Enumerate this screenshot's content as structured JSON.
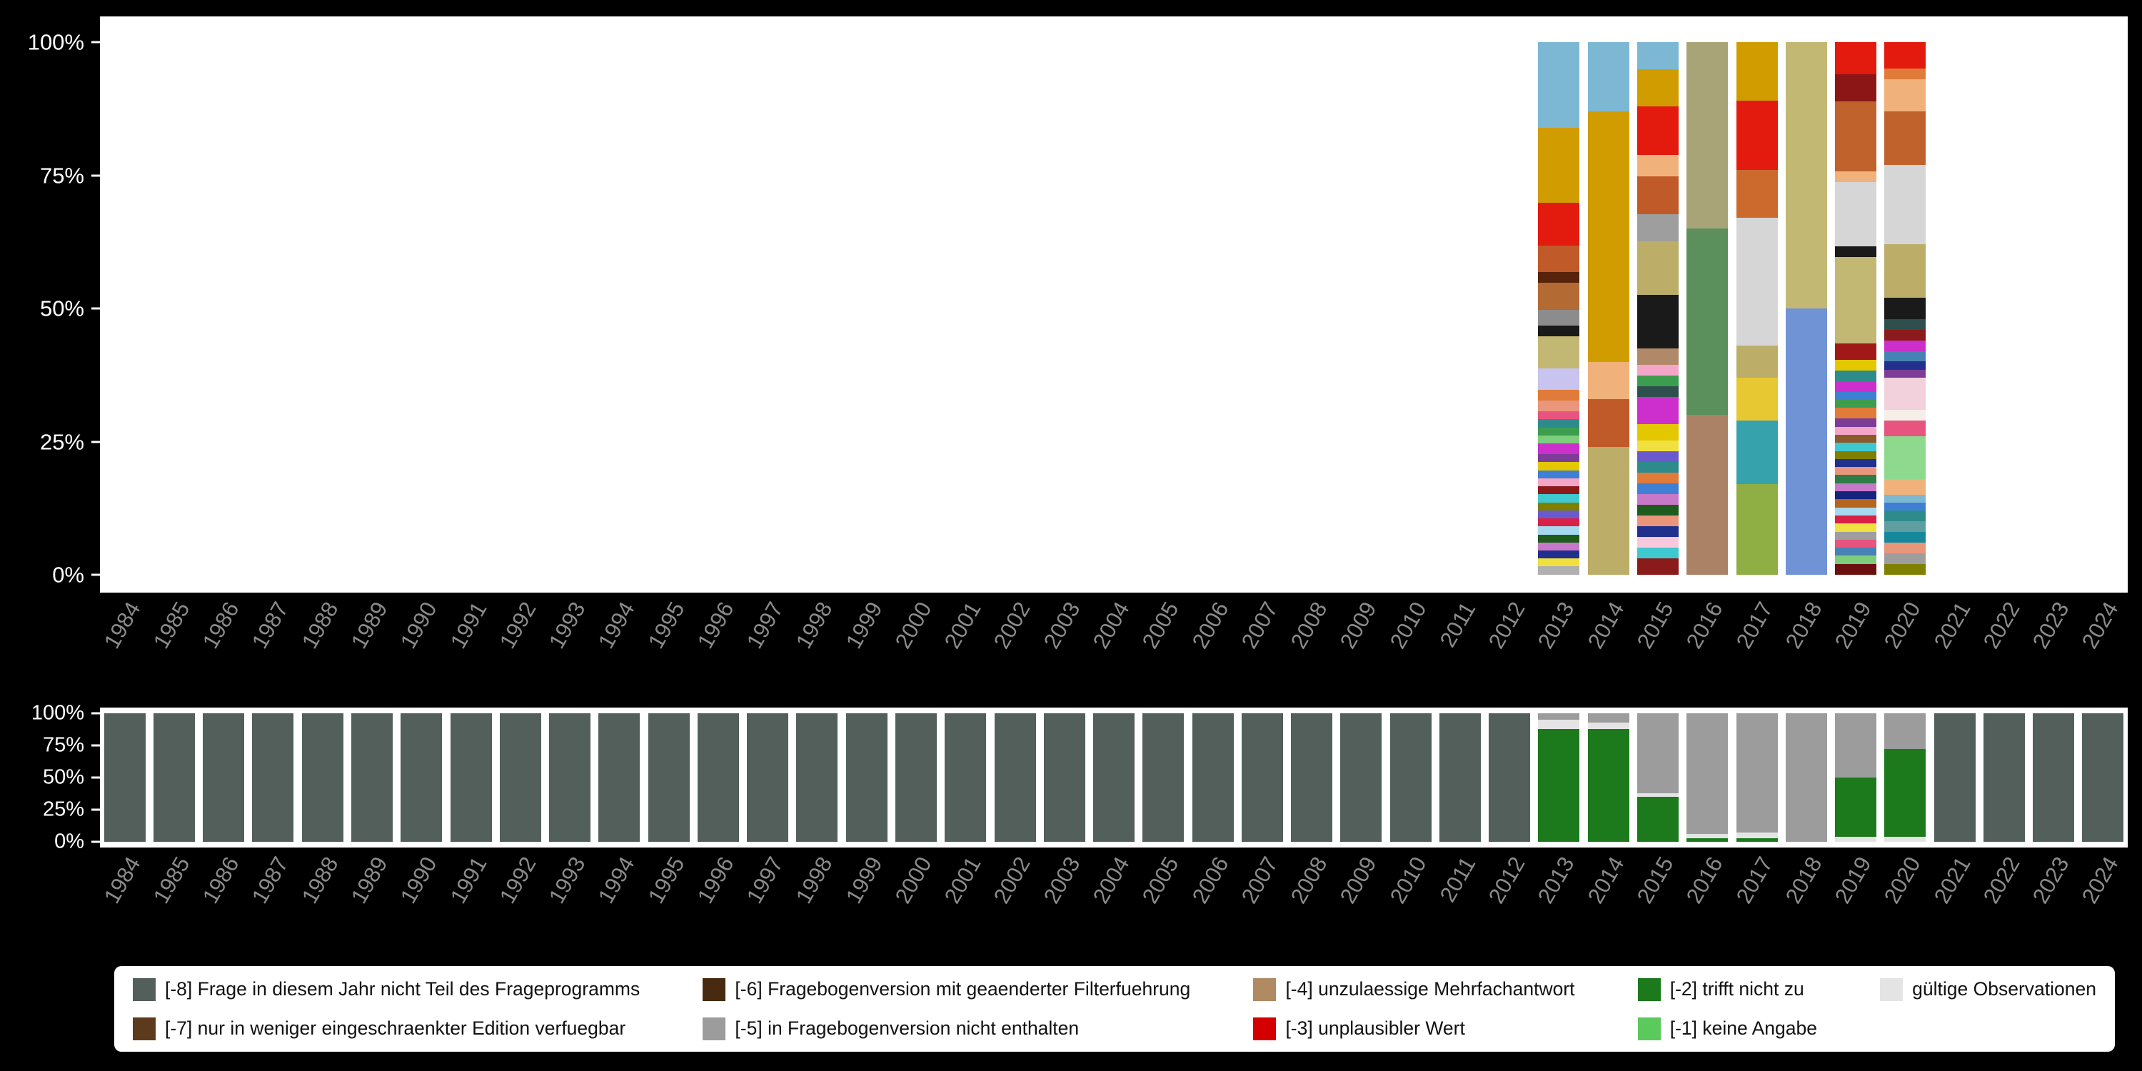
{
  "palette": {
    "page_background": "#000000",
    "plot_background": "#ffffff",
    "y_axis_label_color": "#ffffff",
    "x_axis_label_color": "#8b8b8b",
    "legend_background": "#ffffff",
    "legend_text_color": "#111111"
  },
  "axes": {
    "y_tick_labels": [
      "100%",
      "75%",
      "50%",
      "25%",
      "0%"
    ],
    "years": [
      "1984",
      "1985",
      "1986",
      "1987",
      "1988",
      "1989",
      "1990",
      "1991",
      "1992",
      "1993",
      "1994",
      "1995",
      "1996",
      "1997",
      "1998",
      "1999",
      "2000",
      "2001",
      "2002",
      "2003",
      "2004",
      "2005",
      "2006",
      "2007",
      "2008",
      "2009",
      "2010",
      "2011",
      "2012",
      "2013",
      "2014",
      "2015",
      "2016",
      "2017",
      "2018",
      "2019",
      "2020",
      "2021",
      "2022",
      "2023",
      "2024"
    ]
  },
  "legend": {
    "items": [
      {
        "code": "-8",
        "label": "[-8] Frage in diesem Jahr nicht Teil des Frageprogramms",
        "color": "#535f5a"
      },
      {
        "code": "-7",
        "label": "[-7] nur in weniger eingeschraenkter Edition verfuegbar",
        "color": "#5e3a1d"
      },
      {
        "code": "-6",
        "label": "[-6] Fragebogenversion mit geaenderter Filterfuehrung",
        "color": "#472a10"
      },
      {
        "code": "-5",
        "label": "[-5] in Fragebogenversion nicht enthalten",
        "color": "#9c9c9c"
      },
      {
        "code": "-4",
        "label": "[-4] unzulaessige Mehrfachantwort",
        "color": "#b08a63"
      },
      {
        "code": "-3",
        "label": "[-3] unplausibler Wert",
        "color": "#d40000"
      },
      {
        "code": "-2",
        "label": "[-2] trifft nicht zu",
        "color": "#1c7a1c"
      },
      {
        "code": "-1",
        "label": "[-1] keine Angabe",
        "color": "#5cc95c"
      },
      {
        "code": "valid",
        "label": "gültige Observationen",
        "color": "#e4e4e4"
      }
    ]
  },
  "chart_data": [
    {
      "id": "answer-category-distribution",
      "type": "bar",
      "stacked": true,
      "title": "",
      "xlabel": "",
      "ylabel": "",
      "ylim": [
        0,
        100
      ],
      "y_ticks_percent": [
        100,
        75,
        50,
        25,
        0
      ],
      "categories": [
        "1984",
        "1985",
        "1986",
        "1987",
        "1988",
        "1989",
        "1990",
        "1991",
        "1992",
        "1993",
        "1994",
        "1995",
        "1996",
        "1997",
        "1998",
        "1999",
        "2000",
        "2001",
        "2002",
        "2003",
        "2004",
        "2005",
        "2006",
        "2007",
        "2008",
        "2009",
        "2010",
        "2011",
        "2012",
        "2013",
        "2014",
        "2015",
        "2016",
        "2017",
        "2018",
        "2019",
        "2020",
        "2021",
        "2022",
        "2023",
        "2024"
      ],
      "segment_order": "top-to-bottom",
      "bars": {
        "2013": [
          [
            "#7cb8d4",
            16
          ],
          [
            "#d19c00",
            14
          ],
          [
            "#e31a0e",
            8
          ],
          [
            "#c05a28",
            5
          ],
          [
            "#57230b",
            2
          ],
          [
            "#b36a33",
            5
          ],
          [
            "#8c8c8c",
            3
          ],
          [
            "#1a1a1a",
            2
          ],
          [
            "#c3b873",
            6
          ],
          [
            "#c9c3ef",
            4
          ],
          [
            "#e07b39",
            2
          ],
          [
            "#e9967a",
            2
          ],
          [
            "#e75480",
            1.5
          ],
          [
            "#2e8b8b",
            1.5
          ],
          [
            "#3c9d4e",
            1.5
          ],
          [
            "#7ccd7c",
            1.5
          ],
          [
            "#cc2fcb",
            2
          ],
          [
            "#7d3c98",
            1.5
          ],
          [
            "#e3c800",
            1.5
          ],
          [
            "#3f7fd4",
            1.5
          ],
          [
            "#f4a6c9",
            1.5
          ],
          [
            "#8b1a1a",
            1.5
          ],
          [
            "#40c8d0",
            1.5
          ],
          [
            "#808000",
            1.5
          ],
          [
            "#6a5acd",
            1.5
          ],
          [
            "#d92045",
            1.5
          ],
          [
            "#a6d8ef",
            1.5
          ],
          [
            "#1e5c1e",
            1.5
          ],
          [
            "#c878c8",
            1.5
          ],
          [
            "#20308c",
            1.5
          ],
          [
            "#f0e040",
            1.5
          ],
          [
            "#b0b0b0",
            1.5
          ]
        ],
        "2014": [
          [
            "#7cb8d4",
            13
          ],
          [
            "#d19c00",
            47
          ],
          [
            "#f0b27a",
            7
          ],
          [
            "#c05a28",
            9
          ],
          [
            "#bcae69",
            24
          ]
        ],
        "2015": [
          [
            "#7cb8d4",
            5
          ],
          [
            "#d19c00",
            7
          ],
          [
            "#e31a0e",
            9
          ],
          [
            "#f0b27a",
            4
          ],
          [
            "#c05a28",
            7
          ],
          [
            "#9e9e9e",
            5
          ],
          [
            "#bcae69",
            10
          ],
          [
            "#1a1a1a",
            10
          ],
          [
            "#b08968",
            3
          ],
          [
            "#f4a6c9",
            2
          ],
          [
            "#3c9d4e",
            2
          ],
          [
            "#2f4f4f",
            2
          ],
          [
            "#cc2fcb",
            5
          ],
          [
            "#e3c800",
            3
          ],
          [
            "#f0e040",
            2
          ],
          [
            "#6a5acd",
            2
          ],
          [
            "#2e8b8b",
            2
          ],
          [
            "#e07b39",
            2
          ],
          [
            "#3f7fd4",
            2
          ],
          [
            "#c878c8",
            2
          ],
          [
            "#1e5c1e",
            2
          ],
          [
            "#e9967a",
            2
          ],
          [
            "#20308c",
            2
          ],
          [
            "#f8c8dc",
            2
          ],
          [
            "#40c8d0",
            2
          ],
          [
            "#8b1a1a",
            3
          ]
        ],
        "2016": [
          [
            "#a9a478",
            35
          ],
          [
            "#5b8f5b",
            35
          ],
          [
            "#ab8265",
            30
          ]
        ],
        "2017": [
          [
            "#d19c00",
            11
          ],
          [
            "#e31a0e",
            13
          ],
          [
            "#cc6a2e",
            9
          ],
          [
            "#d6d6d6",
            24
          ],
          [
            "#bcae69",
            6
          ],
          [
            "#e8c832",
            8
          ],
          [
            "#35a2ac",
            12
          ],
          [
            "#8fae44",
            17
          ]
        ],
        "2018": [
          [
            "#c3b873",
            50
          ],
          [
            "#7093d5",
            50
          ]
        ],
        "2019": [
          [
            "#e31a0e",
            6
          ],
          [
            "#8c1616",
            5
          ],
          [
            "#c0622b",
            13
          ],
          [
            "#f0b27a",
            2
          ],
          [
            "#d6d6d6",
            12
          ],
          [
            "#1a1a1a",
            2
          ],
          [
            "#c3b873",
            16
          ],
          [
            "#a01818",
            3
          ],
          [
            "#e3c800",
            2
          ],
          [
            "#2e8b8b",
            2
          ],
          [
            "#cc2fcb",
            2
          ],
          [
            "#3f7fd4",
            1.5
          ],
          [
            "#3c9d4e",
            1.5
          ],
          [
            "#e07b39",
            2
          ],
          [
            "#7d3c98",
            1.5
          ],
          [
            "#f4a6c9",
            1.5
          ],
          [
            "#8a5a2b",
            1.5
          ],
          [
            "#40c8d0",
            1.5
          ],
          [
            "#808000",
            1.5
          ],
          [
            "#20308c",
            1.5
          ],
          [
            "#e9967a",
            1.5
          ],
          [
            "#2f7d46",
            1.5
          ],
          [
            "#c878c8",
            1.5
          ],
          [
            "#16247c",
            1.5
          ],
          [
            "#b5651d",
            1.5
          ],
          [
            "#a6d8ef",
            1.5
          ],
          [
            "#d92045",
            1.5
          ],
          [
            "#f0e040",
            1.5
          ],
          [
            "#9e9e9e",
            1.5
          ],
          [
            "#e75480",
            1.5
          ],
          [
            "#4682b4",
            1.5
          ],
          [
            "#7ccd7c",
            1.5
          ],
          [
            "#6b1010",
            2
          ]
        ],
        "2020": [
          [
            "#e31a0e",
            5
          ],
          [
            "#e07b39",
            2
          ],
          [
            "#f0b27a",
            6
          ],
          [
            "#c0622b",
            10
          ],
          [
            "#d6d6d6",
            15
          ],
          [
            "#bcae69",
            10
          ],
          [
            "#1a1a1a",
            4
          ],
          [
            "#2f4f4f",
            2
          ],
          [
            "#8b1a1a",
            2
          ],
          [
            "#cc2fcb",
            2
          ],
          [
            "#4682b4",
            2
          ],
          [
            "#20308c",
            1.5
          ],
          [
            "#7d3c98",
            1.5
          ],
          [
            "#f3d1dc",
            6
          ],
          [
            "#f5efe8",
            2
          ],
          [
            "#e75480",
            3
          ],
          [
            "#8fd98f",
            8
          ],
          [
            "#f0b27a",
            3
          ],
          [
            "#7cb8d4",
            1.5
          ],
          [
            "#3f7fd4",
            1.5
          ],
          [
            "#2e8b8b",
            2
          ],
          [
            "#5f9ea0",
            2
          ],
          [
            "#17889c",
            2
          ],
          [
            "#e9967a",
            2
          ],
          [
            "#9e9e9e",
            2
          ],
          [
            "#808000",
            2
          ]
        ]
      }
    },
    {
      "id": "missing-codes-share",
      "type": "bar",
      "stacked": true,
      "title": "",
      "xlabel": "",
      "ylabel": "",
      "ylim": [
        0,
        100
      ],
      "y_ticks_percent": [
        100,
        75,
        50,
        25,
        0
      ],
      "categories": [
        "1984",
        "1985",
        "1986",
        "1987",
        "1988",
        "1989",
        "1990",
        "1991",
        "1992",
        "1993",
        "1994",
        "1995",
        "1996",
        "1997",
        "1998",
        "1999",
        "2000",
        "2001",
        "2002",
        "2003",
        "2004",
        "2005",
        "2006",
        "2007",
        "2008",
        "2009",
        "2010",
        "2011",
        "2012",
        "2013",
        "2014",
        "2015",
        "2016",
        "2017",
        "2018",
        "2019",
        "2020",
        "2021",
        "2022",
        "2023",
        "2024"
      ],
      "segment_order": "top-to-bottom",
      "bars": {
        "1984": [
          [
            "-8",
            100
          ]
        ],
        "1985": [
          [
            "-8",
            100
          ]
        ],
        "1986": [
          [
            "-8",
            100
          ]
        ],
        "1987": [
          [
            "-8",
            100
          ]
        ],
        "1988": [
          [
            "-8",
            100
          ]
        ],
        "1989": [
          [
            "-8",
            100
          ]
        ],
        "1990": [
          [
            "-8",
            100
          ]
        ],
        "1991": [
          [
            "-8",
            100
          ]
        ],
        "1992": [
          [
            "-8",
            100
          ]
        ],
        "1993": [
          [
            "-8",
            100
          ]
        ],
        "1994": [
          [
            "-8",
            100
          ]
        ],
        "1995": [
          [
            "-8",
            100
          ]
        ],
        "1996": [
          [
            "-8",
            100
          ]
        ],
        "1997": [
          [
            "-8",
            100
          ]
        ],
        "1998": [
          [
            "-8",
            100
          ]
        ],
        "1999": [
          [
            "-8",
            100
          ]
        ],
        "2000": [
          [
            "-8",
            100
          ]
        ],
        "2001": [
          [
            "-8",
            100
          ]
        ],
        "2002": [
          [
            "-8",
            100
          ]
        ],
        "2003": [
          [
            "-8",
            100
          ]
        ],
        "2004": [
          [
            "-8",
            100
          ]
        ],
        "2005": [
          [
            "-8",
            100
          ]
        ],
        "2006": [
          [
            "-8",
            100
          ]
        ],
        "2007": [
          [
            "-8",
            100
          ]
        ],
        "2008": [
          [
            "-8",
            100
          ]
        ],
        "2009": [
          [
            "-8",
            100
          ]
        ],
        "2010": [
          [
            "-8",
            100
          ]
        ],
        "2011": [
          [
            "-8",
            100
          ]
        ],
        "2012": [
          [
            "-8",
            100
          ]
        ],
        "2013": [
          [
            "-5",
            5
          ],
          [
            "valid",
            7
          ],
          [
            "-2",
            88
          ]
        ],
        "2014": [
          [
            "-5",
            7
          ],
          [
            "valid",
            5
          ],
          [
            "-2",
            88
          ]
        ],
        "2015": [
          [
            "-5",
            62
          ],
          [
            "valid",
            3
          ],
          [
            "-2",
            35
          ]
        ],
        "2016": [
          [
            "-5",
            94
          ],
          [
            "valid",
            3
          ],
          [
            "-2",
            3
          ]
        ],
        "2017": [
          [
            "-5",
            93
          ],
          [
            "valid",
            4
          ],
          [
            "-2",
            3
          ]
        ],
        "2018": [
          [
            "-5",
            100
          ]
        ],
        "2019": [
          [
            "-5",
            50
          ],
          [
            "-2",
            46
          ],
          [
            "valid",
            4
          ]
        ],
        "2020": [
          [
            "-5",
            28
          ],
          [
            "-2",
            68
          ],
          [
            "valid",
            4
          ]
        ],
        "2021": [
          [
            "-8",
            100
          ]
        ],
        "2022": [
          [
            "-8",
            100
          ]
        ],
        "2023": [
          [
            "-8",
            100
          ]
        ],
        "2024": [
          [
            "-8",
            100
          ]
        ]
      }
    }
  ]
}
